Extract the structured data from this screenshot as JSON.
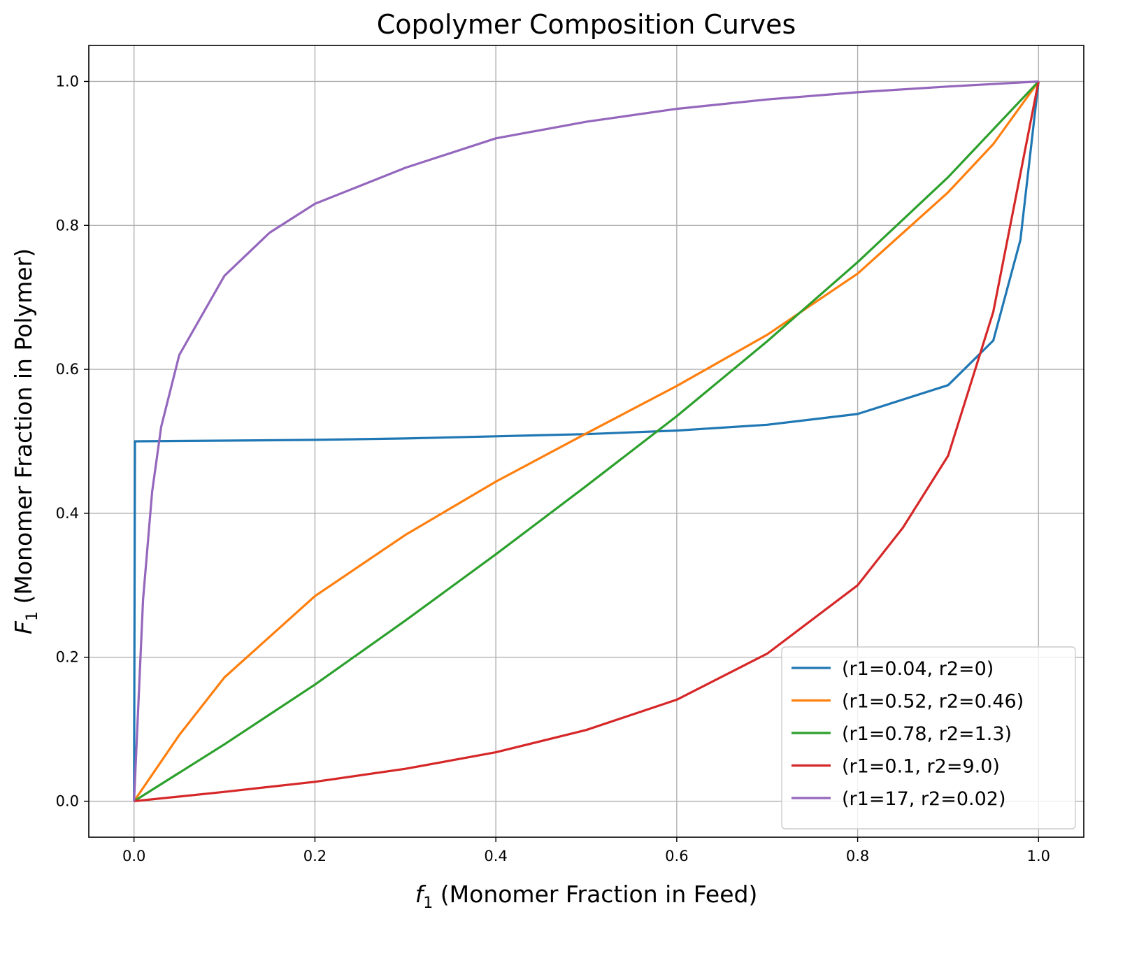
{
  "chart_data": {
    "type": "line",
    "title": "Copolymer Composition Curves",
    "xlabel": {
      "symbol": "f",
      "subscript": "1",
      "text": " (Monomer Fraction in Feed)"
    },
    "ylabel": {
      "symbol": "F",
      "subscript": "1",
      "text": " (Monomer Fraction in Polymer)"
    },
    "xlim": [
      -0.05,
      1.05
    ],
    "ylim": [
      -0.05,
      1.05
    ],
    "xticks": [
      0.0,
      0.2,
      0.4,
      0.6,
      0.8,
      1.0
    ],
    "yticks": [
      0.0,
      0.2,
      0.4,
      0.6,
      0.8,
      1.0
    ],
    "xtick_labels": [
      "0.0",
      "0.2",
      "0.4",
      "0.6",
      "0.8",
      "1.0"
    ],
    "ytick_labels": [
      "0.0",
      "0.2",
      "0.4",
      "0.6",
      "0.8",
      "1.0"
    ],
    "grid": true,
    "legend_position": "bottom-right",
    "series": [
      {
        "name": "(r1=0.04, r2=0)",
        "r1": 0.04,
        "r2": 0,
        "color": "#1f77b4",
        "points": [
          [
            0,
            0
          ],
          [
            0.001,
            0.5
          ],
          [
            0.1,
            0.501
          ],
          [
            0.2,
            0.502
          ],
          [
            0.3,
            0.504
          ],
          [
            0.4,
            0.507
          ],
          [
            0.5,
            0.51
          ],
          [
            0.6,
            0.515
          ],
          [
            0.7,
            0.523
          ],
          [
            0.8,
            0.538
          ],
          [
            0.9,
            0.578
          ],
          [
            0.95,
            0.64
          ],
          [
            0.98,
            0.78
          ],
          [
            1.0,
            1.0
          ]
        ]
      },
      {
        "name": "(r1=0.52, r2=0.46)",
        "r1": 0.52,
        "r2": 0.46,
        "color": "#ff7f0e",
        "points": [
          [
            0,
            0
          ],
          [
            0.05,
            0.092
          ],
          [
            0.1,
            0.172
          ],
          [
            0.2,
            0.285
          ],
          [
            0.3,
            0.37
          ],
          [
            0.4,
            0.444
          ],
          [
            0.5,
            0.511
          ],
          [
            0.6,
            0.577
          ],
          [
            0.7,
            0.648
          ],
          [
            0.8,
            0.733
          ],
          [
            0.9,
            0.846
          ],
          [
            0.95,
            0.913
          ],
          [
            1.0,
            1.0
          ]
        ]
      },
      {
        "name": "(r1=0.78, r2=1.3)",
        "r1": 0.78,
        "r2": 1.3,
        "color": "#2ca02c",
        "points": [
          [
            0,
            0
          ],
          [
            0.1,
            0.079
          ],
          [
            0.2,
            0.162
          ],
          [
            0.3,
            0.251
          ],
          [
            0.4,
            0.343
          ],
          [
            0.5,
            0.438
          ],
          [
            0.6,
            0.535
          ],
          [
            0.7,
            0.639
          ],
          [
            0.8,
            0.749
          ],
          [
            0.9,
            0.867
          ],
          [
            1.0,
            1.0
          ]
        ]
      },
      {
        "name": "(r1=0.1, r2=9.0)",
        "r1": 0.1,
        "r2": 9.0,
        "color": "#d62728",
        "points": [
          [
            0,
            0
          ],
          [
            0.1,
            0.013
          ],
          [
            0.2,
            0.027
          ],
          [
            0.3,
            0.045
          ],
          [
            0.4,
            0.068
          ],
          [
            0.5,
            0.099
          ],
          [
            0.6,
            0.141
          ],
          [
            0.7,
            0.205
          ],
          [
            0.8,
            0.3
          ],
          [
            0.85,
            0.38
          ],
          [
            0.9,
            0.48
          ],
          [
            0.95,
            0.68
          ],
          [
            1.0,
            1.0
          ]
        ]
      },
      {
        "name": "(r1=17, r2=0.02)",
        "r1": 17,
        "r2": 0.02,
        "color": "#9467bd",
        "points": [
          [
            0,
            0
          ],
          [
            0.01,
            0.28
          ],
          [
            0.02,
            0.43
          ],
          [
            0.03,
            0.52
          ],
          [
            0.05,
            0.62
          ],
          [
            0.1,
            0.73
          ],
          [
            0.15,
            0.79
          ],
          [
            0.2,
            0.83
          ],
          [
            0.3,
            0.88
          ],
          [
            0.4,
            0.921
          ],
          [
            0.5,
            0.944
          ],
          [
            0.6,
            0.962
          ],
          [
            0.7,
            0.975
          ],
          [
            0.8,
            0.985
          ],
          [
            0.9,
            0.993
          ],
          [
            1.0,
            1.0
          ]
        ]
      }
    ]
  }
}
